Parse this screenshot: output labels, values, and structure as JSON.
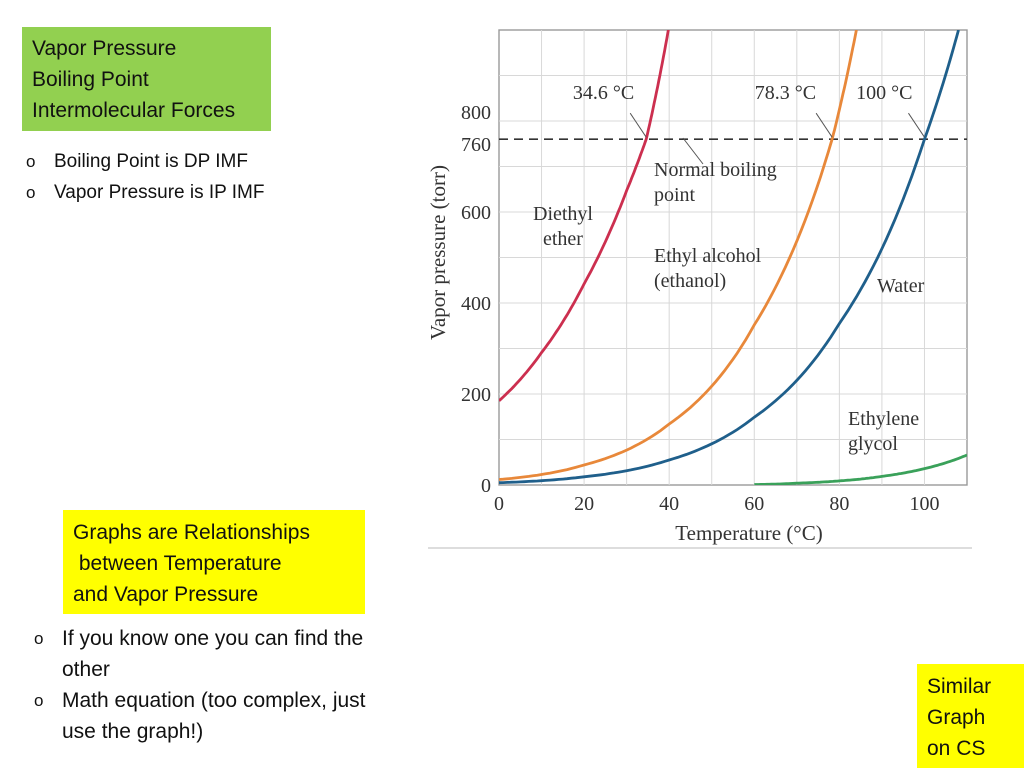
{
  "title_box": {
    "lines": [
      "Vapor Pressure",
      "Boiling Point",
      "Intermolecular Forces"
    ],
    "color": "#92d050"
  },
  "top_bullets": [
    "Boiling Point is DP IMF",
    "Vapor Pressure is IP IMF"
  ],
  "note_box": {
    "lines": [
      "Graphs are Relationships",
      " between Temperature",
      "and Vapor Pressure"
    ],
    "color": "#ffff00"
  },
  "bottom_bullets": [
    {
      "lines": [
        "If you know one you can find the",
        "other"
      ]
    },
    {
      "lines": [
        "Math equation (too complex, just",
        "use the graph!)"
      ]
    }
  ],
  "similar_box": {
    "lines": [
      "Similar",
      "Graph",
      "on CS"
    ],
    "color": "#ffff00"
  },
  "chart_data": {
    "type": "line",
    "xlabel": "Temperature (°C)",
    "ylabel": "Vapor pressure (torr)",
    "xlim": [
      0,
      110
    ],
    "ylim": [
      0,
      1000
    ],
    "x_ticks": [
      "0",
      "20",
      "40",
      "60",
      "80",
      "100"
    ],
    "y_ticks": [
      "0",
      "200",
      "400",
      "600",
      "760",
      "800"
    ],
    "grid": true,
    "reference_line": {
      "y": 760,
      "style": "dashed",
      "label": "Normal boiling point"
    },
    "series": [
      {
        "name": "Diethyl ether",
        "color": "#cc2f4f",
        "x": [
          0,
          10,
          20,
          30,
          34.6,
          40
        ],
        "y": [
          185,
          291,
          442,
          647,
          760,
          1010
        ]
      },
      {
        "name": "Ethyl alcohol (ethanol)",
        "color": "#e8883a",
        "x": [
          0,
          20,
          40,
          60,
          78.3,
          84
        ],
        "y": [
          12,
          44,
          134,
          352,
          760,
          1000
        ]
      },
      {
        "name": "Water",
        "color": "#1f5f8b",
        "x": [
          0,
          20,
          40,
          60,
          80,
          100,
          108
        ],
        "y": [
          5,
          18,
          55,
          149,
          355,
          760,
          1000
        ]
      },
      {
        "name": "Ethylene glycol",
        "color": "#3aa15a",
        "x": [
          60,
          70,
          80,
          90,
          100,
          110
        ],
        "y": [
          1,
          4,
          9,
          19,
          36,
          66
        ]
      }
    ],
    "annotations": [
      {
        "text": "34.6 °C",
        "x": 34.6,
        "y": 760
      },
      {
        "text": "78.3 °C",
        "x": 78.3,
        "y": 760
      },
      {
        "text": "100 °C",
        "x": 100,
        "y": 760
      }
    ],
    "curve_labels": [
      {
        "lines": [
          "Diethyl",
          "ether"
        ]
      },
      {
        "lines": [
          "Ethyl alcohol",
          "(ethanol)"
        ]
      },
      {
        "lines": [
          "Water"
        ]
      },
      {
        "lines": [
          "Ethylene",
          "glycol"
        ]
      },
      {
        "lines": [
          "Normal boiling",
          "point"
        ]
      }
    ]
  }
}
